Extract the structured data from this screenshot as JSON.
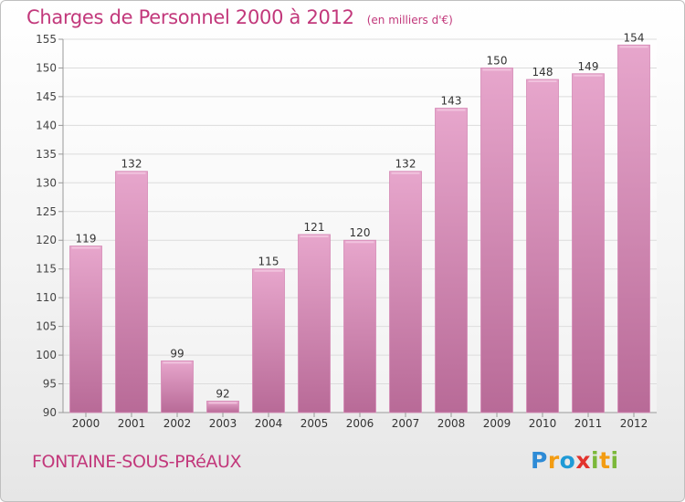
{
  "header": {
    "title": "Charges de Personnel 2000 à 2012",
    "subtitle": "(en milliers d'€)"
  },
  "footer": {
    "place": "FONTAINE-SOUS-PRéAUX",
    "logo_letters": [
      {
        "ch": "P",
        "color": "#2e8bd6"
      },
      {
        "ch": "r",
        "color": "#f39c12"
      },
      {
        "ch": "o",
        "color": "#1f9ad6"
      },
      {
        "ch": "x",
        "color": "#e2332d"
      },
      {
        "ch": "i",
        "color": "#7cb83a"
      },
      {
        "ch": "t",
        "color": "#f39c12"
      },
      {
        "ch": "i",
        "color": "#7cb83a"
      }
    ]
  },
  "colors": {
    "accent": "#c2387b",
    "bar_top": "#e7a6cc",
    "bar_bottom": "#b86a97",
    "grid": "#dcdcdc"
  },
  "chart_data": {
    "type": "bar",
    "title": "Charges de Personnel 2000 à 2012",
    "subtitle": "(en milliers d'€)",
    "categories": [
      "2000",
      "2001",
      "2002",
      "2003",
      "2004",
      "2005",
      "2006",
      "2007",
      "2008",
      "2009",
      "2010",
      "2011",
      "2012"
    ],
    "values": [
      119,
      132,
      99,
      92,
      115,
      121,
      120,
      132,
      143,
      150,
      148,
      149,
      154
    ],
    "data_labels": [
      "119",
      "132",
      "99",
      "92",
      "115",
      "121",
      "120",
      "132",
      "143",
      "150",
      "148",
      "149",
      "154"
    ],
    "ylim": [
      90,
      155
    ],
    "yticks": [
      90,
      95,
      100,
      105,
      110,
      115,
      120,
      125,
      130,
      135,
      140,
      145,
      150,
      155
    ],
    "xlabel": "",
    "ylabel": "",
    "grid": true,
    "legend": "none"
  }
}
